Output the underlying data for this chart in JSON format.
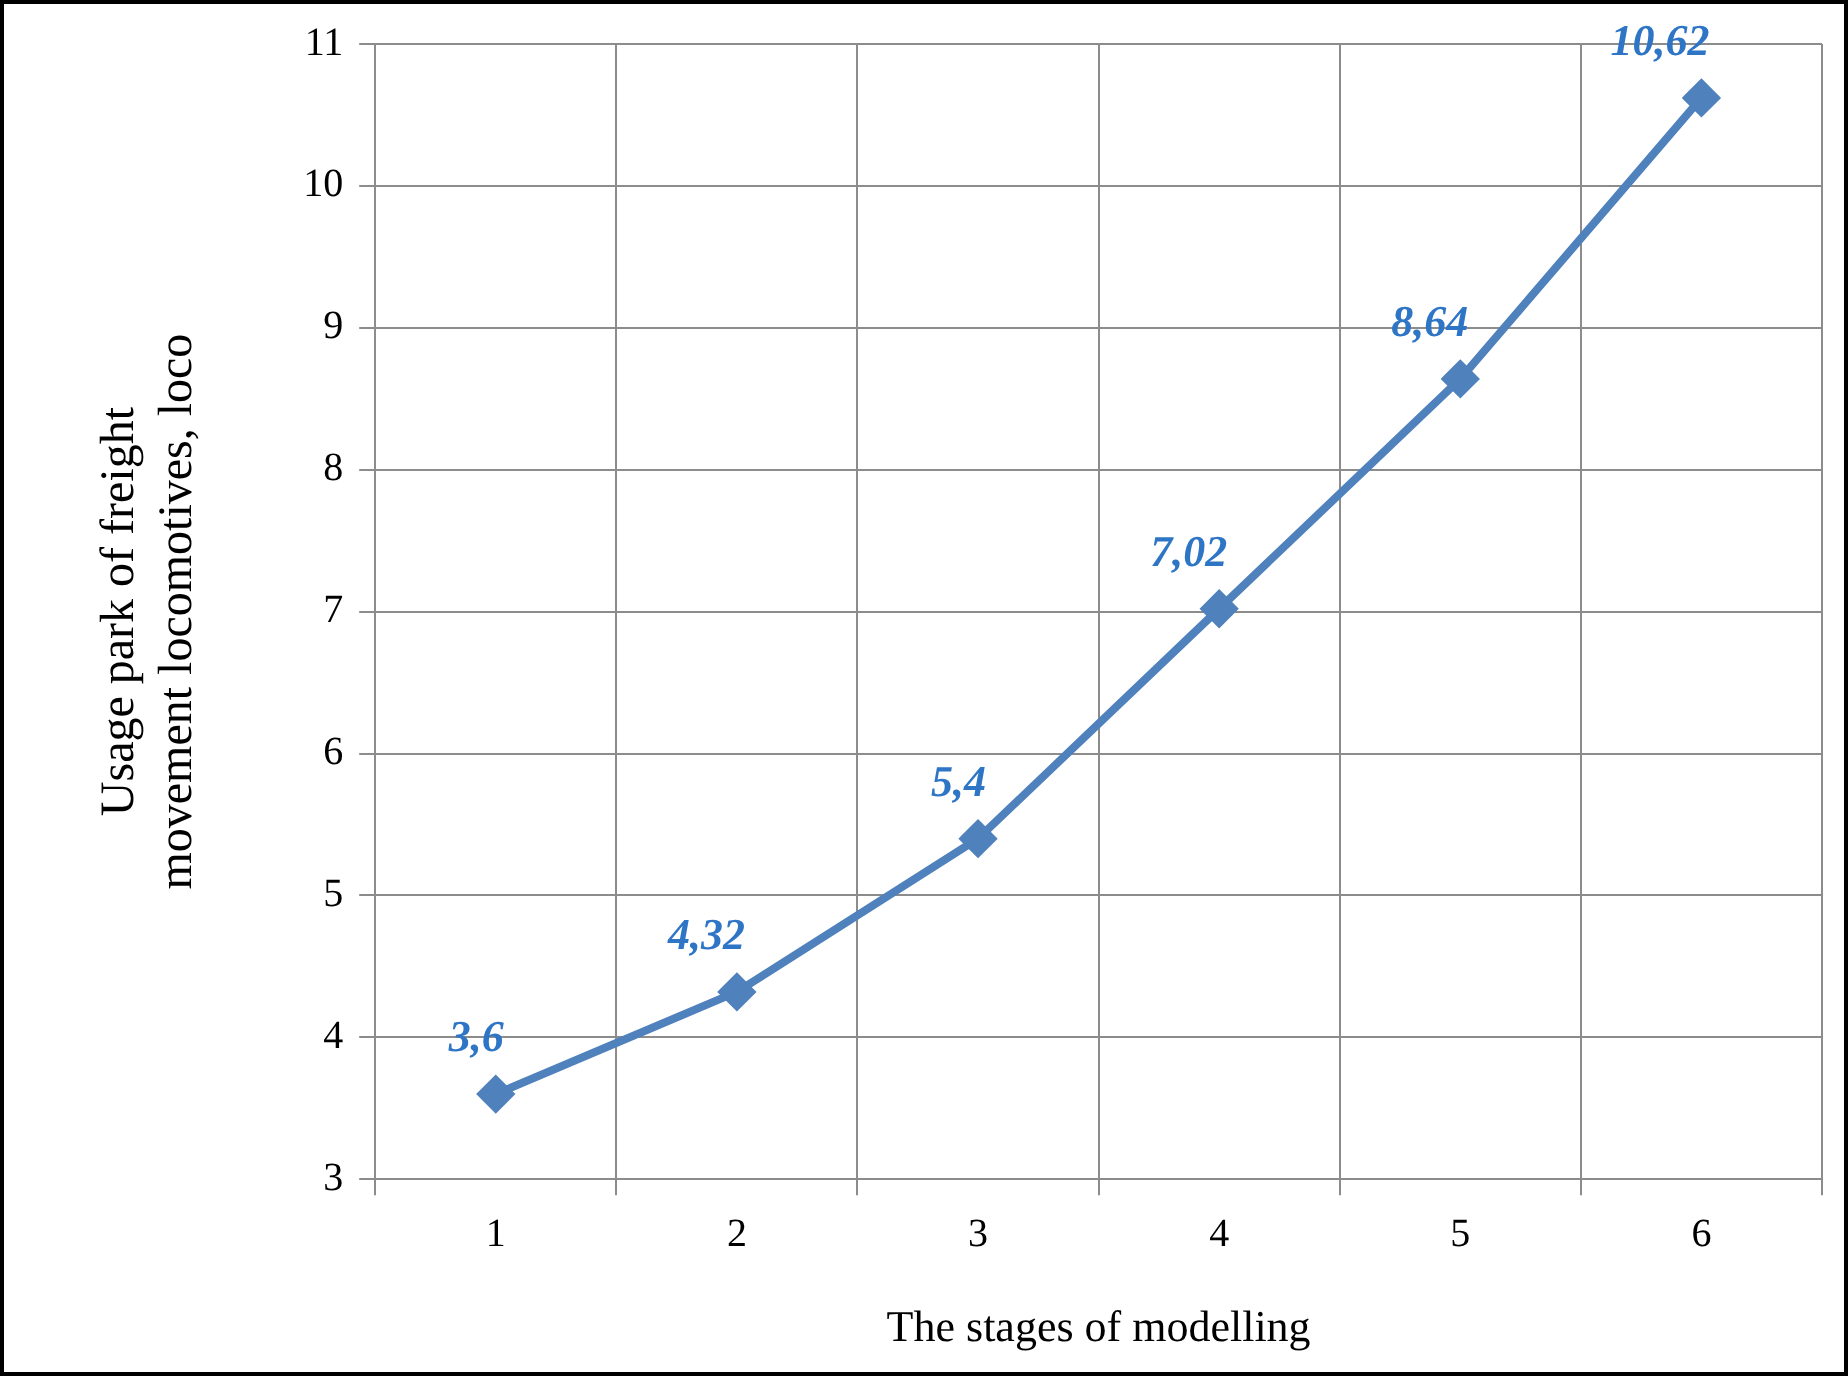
{
  "chart_data": {
    "type": "line",
    "xlabel": "The stages of modelling",
    "ylabel": "Usage park of freight movement locomotives, loco",
    "categories": [
      "1",
      "2",
      "3",
      "4",
      "5",
      "6"
    ],
    "series": [
      {
        "color": "#4f81bd",
        "values": [
          3.6,
          4.32,
          5.4,
          7.02,
          8.64,
          10.62
        ],
        "value_labels": [
          "3,6",
          "4,32",
          "5,4",
          "7,02",
          "8,64",
          "10,62"
        ]
      }
    ],
    "ylim": [
      3,
      11
    ],
    "yticks": [
      3,
      4,
      5,
      6,
      7,
      8,
      9,
      10,
      11
    ],
    "grid": true,
    "legend": false,
    "marker": "diamond",
    "line_style": "solid"
  }
}
